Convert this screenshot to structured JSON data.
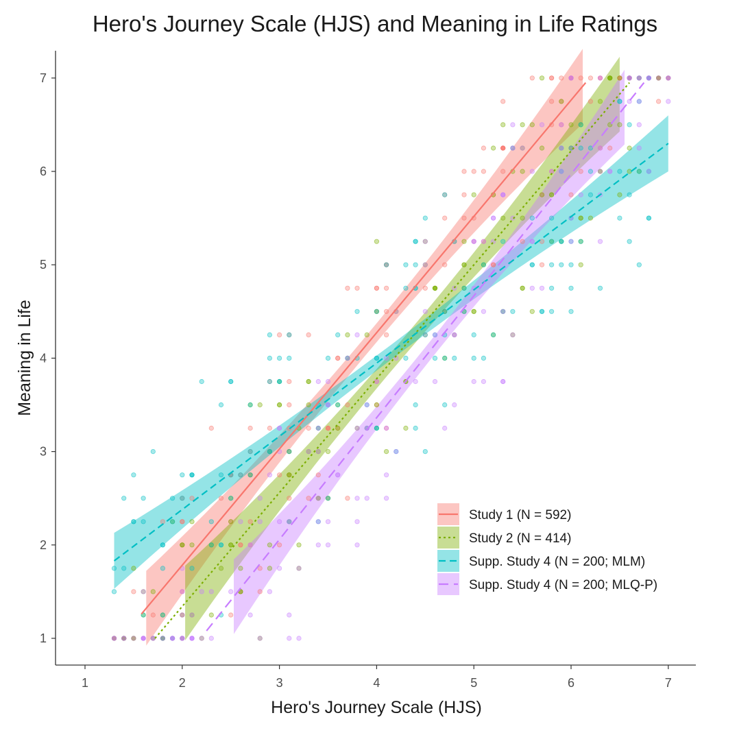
{
  "chart_data": {
    "type": "scatter",
    "title": "Hero's Journey Scale (HJS) and Meaning in Life Ratings",
    "xlabel": "Hero's Journey Scale (HJS)",
    "ylabel": "Meaning in Life",
    "xlim": [
      0.7,
      7.3
    ],
    "ylim": [
      0.7,
      7.3
    ],
    "x_ticks": [
      "1",
      "2",
      "3",
      "4",
      "5",
      "6",
      "7"
    ],
    "y_ticks": [
      "1",
      "2",
      "3",
      "4",
      "5",
      "6",
      "7"
    ],
    "grid": false,
    "legend_position": "bottom-right",
    "series": [
      {
        "name": "Study 1 (N = 592)",
        "color": "#f8766d",
        "line_style": "solid",
        "fit_start": [
          1.58,
          1.26
        ],
        "fit_end": [
          6.15,
          6.95
        ],
        "ribbon_x_range": [
          1.63,
          6.12
        ],
        "ribbon_halfwidth_ends": 0.4,
        "ribbon_halfwidth_mid": 0.1
      },
      {
        "name": "Study 2 (N = 414)",
        "color": "#7cae00",
        "line_style": "dotted",
        "fit_start": [
          1.72,
          1.0
        ],
        "fit_end": [
          6.6,
          6.95
        ],
        "ribbon_x_range": [
          2.03,
          6.5
        ],
        "ribbon_halfwidth_ends": 0.4,
        "ribbon_halfwidth_mid": 0.1
      },
      {
        "name": "Supp. Study 4 (N = 200; MLM)",
        "color": "#00bfc4",
        "line_style": "dashed",
        "fit_start": [
          1.3,
          1.83
        ],
        "fit_end": [
          7.0,
          6.3
        ],
        "ribbon_x_range": [
          1.3,
          7.0
        ],
        "ribbon_halfwidth_ends": 0.3,
        "ribbon_halfwidth_mid": 0.08
      },
      {
        "name": "Supp. Study 4 (N = 200; MLQ-P)",
        "color": "#c77cff",
        "line_style": "longdash",
        "fit_start": [
          2.25,
          1.08
        ],
        "fit_end": [
          6.75,
          6.95
        ],
        "ribbon_x_range": [
          2.53,
          6.55
        ],
        "ribbon_halfwidth_ends": 0.4,
        "ribbon_halfwidth_mid": 0.1
      }
    ]
  }
}
